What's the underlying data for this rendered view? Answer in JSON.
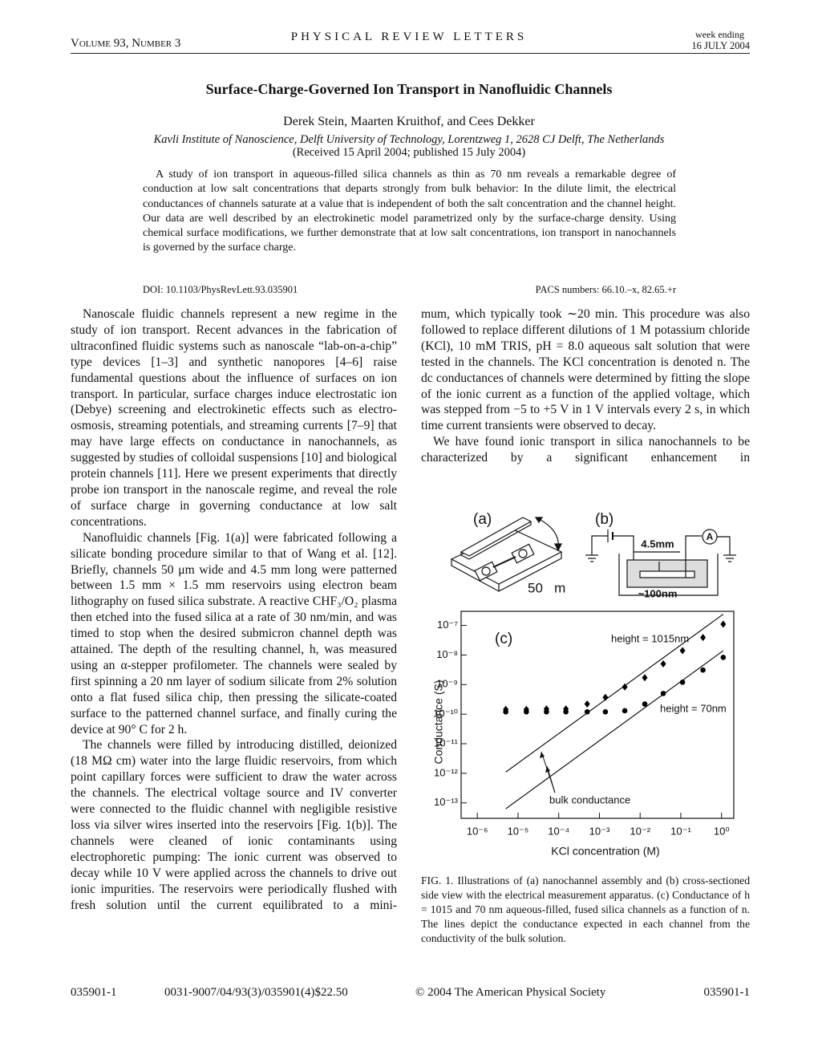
{
  "header": {
    "volume": "Volume 93, Number 3",
    "journal": "PHYSICAL REVIEW LETTERS",
    "week": "week ending",
    "date": "16 JULY 2004"
  },
  "article": {
    "title": "Surface-Charge-Governed Ion Transport in Nanofluidic Channels",
    "authors": "Derek Stein, Maarten Kruithof, and Cees Dekker",
    "affiliation": "Kavli Institute of Nanoscience, Delft University of Technology, Lorentzweg 1, 2628 CJ Delft, The Netherlands",
    "received": "(Received 15 April 2004; published 15 July 2004)",
    "abstract": "A study of ion transport in aqueous-filled silica channels as thin as 70 nm reveals a remarkable degree of conduction at low salt concentrations that departs strongly from bulk behavior: In the dilute limit, the electrical conductances of channels saturate at a value that is independent of both the salt concentration and the channel height. Our data are well described by an electrokinetic model parametrized only by the surface-charge density. Using chemical surface modifications, we further demonstrate that at low salt concentrations, ion transport in nanochannels is governed by the surface charge.",
    "doi": "DOI: 10.1103/PhysRevLett.93.035901",
    "pacs": "PACS numbers: 66.10.–x, 82.65.+r"
  },
  "body": {
    "left": [
      "Nanoscale fluidic channels represent a new regime in the study of ion transport. Recent advances in the fabrication of ultraconfined fluidic systems such as nanoscale “lab-on-a-chip” type devices [1–3] and synthetic nanopores [4–6] raise fundamental questions about the influence of surfaces on ion transport. In particular, surface charges induce electrostatic ion (Debye) screening and electrokinetic effects such as electro-osmosis, streaming potentials, and streaming currents [7–9] that may have large effects on conductance in nanochannels, as suggested by studies of colloidal suspensions [10] and biological protein channels [11]. Here we present experiments that directly probe ion transport in the nanoscale regime, and reveal the role of surface charge in governing conductance at low salt concentrations.",
      "Nanofluidic channels [Fig. 1(a)] were fabricated following a silicate bonding procedure similar to that of Wang et al. [12]. Briefly, channels 50 μm wide and 4.5 mm long were patterned between 1.5 mm × 1.5 mm reservoirs using electron beam lithography on fused silica substrate. A reactive CHF₃/O₂ plasma then etched into the fused silica at a rate of 30 nm/min, and was timed to stop when the desired submicron channel depth was attained. The depth of the resulting channel, h, was measured using an α-stepper profilometer. The channels were sealed by first spinning a 20 nm layer of sodium silicate from 2% solution onto a flat fused silica chip, then pressing the silicate-coated surface to the patterned channel surface, and finally curing the device at 90° C for 2 h.",
      "The channels were filled by introducing distilled, deionized (18 MΩ cm) water into the large fluidic reservoirs, from which point capillary forces were sufficient to draw the water across the channels. The electrical voltage source and IV converter were connected to the fluidic channel with negligible resistive loss via silver wires inserted into the reservoirs [Fig. 1(b)]. The channels were cleaned of ionic contaminants using electrophoretic pumping: The ionic current was observed to decay while 10 V were applied across the channels to drive out ionic impurities. The reservoirs were periodically flushed with fresh solution until the current equilibrated to a mini-"
    ],
    "right": [
      "mum, which typically took ∼20 min. This procedure was also followed to replace different dilutions of 1 M potassium chloride (KCl), 10 mM TRIS, pH = 8.0 aqueous salt solution that were tested in the channels. The KCl concentration is denoted n. The dc conductances of channels were determined by fitting the slope of the ionic current as a function of the applied voltage, which was stepped from −5 to +5 V in 1 V intervals every 2 s, in which time current transients were observed to decay.",
      "We have found ionic transport in silica nanochannels to be characterized by a significant enhancement in"
    ]
  },
  "figure": {
    "panel_a": {
      "label": "(a)",
      "scale": "50   m"
    },
    "panel_b": {
      "label": "(b)",
      "length": "4.5mm",
      "depth": "~100nm",
      "meter": "A"
    },
    "caption": "FIG. 1. Illustrations of (a) nanochannel assembly and (b) cross-sectioned side view with the electrical measurement apparatus. (c) Conductance of h = 1015 and 70 nm aqueous-filled, fused silica channels as a function of n. The lines depict the conductance expected in each channel from the conductivity of the bulk solution."
  },
  "chart_data": {
    "type": "scatter",
    "panel_label": "(c)",
    "x_label": "KCl concentration (M)",
    "y_label": "Conductance (S)",
    "xscale": "log",
    "yscale": "log",
    "xlim": [
      4e-07,
      2
    ],
    "ylim": [
      3e-14,
      3e-07
    ],
    "xticks": [
      {
        "value": 1e-06,
        "label": "10⁻⁶"
      },
      {
        "value": 1e-05,
        "label": "10⁻⁵"
      },
      {
        "value": 0.0001,
        "label": "10⁻⁴"
      },
      {
        "value": 0.001,
        "label": "10⁻³"
      },
      {
        "value": 0.01,
        "label": "10⁻²"
      },
      {
        "value": 0.1,
        "label": "10⁻¹"
      },
      {
        "value": 1,
        "label": "10⁰"
      }
    ],
    "yticks": [
      {
        "value": 1e-13,
        "label": "10⁻¹³"
      },
      {
        "value": 1e-12,
        "label": "10⁻¹²"
      },
      {
        "value": 1e-11,
        "label": "10⁻¹¹"
      },
      {
        "value": 1e-10,
        "label": "10⁻¹⁰"
      },
      {
        "value": 1e-09,
        "label": "10⁻⁹"
      },
      {
        "value": 1e-08,
        "label": "10⁻⁸"
      },
      {
        "value": 1e-07,
        "label": "10⁻⁷"
      }
    ],
    "x": [
      5e-06,
      1.6e-05,
      5e-05,
      0.00015,
      0.0005,
      0.0014,
      0.0042,
      0.013,
      0.037,
      0.11,
      0.35,
      1.1
    ],
    "series": [
      {
        "color": "#000000",
        "marker": "diamond",
        "values": [
          1.45e-10,
          1.45e-10,
          1.5e-10,
          1.5e-10,
          2.2e-10,
          3.7e-10,
          8.3e-10,
          1.7e-09,
          5e-09,
          1.4e-08,
          3.9e-08,
          1.1e-07
        ]
      },
      {
        "color": "#000000",
        "marker": "circle",
        "values": [
          1.2e-10,
          1.2e-10,
          1.2e-10,
          1.2e-10,
          1.2e-10,
          1.2e-10,
          1.3e-10,
          2.2e-10,
          5e-10,
          1.2e-09,
          3.1e-09,
          8.3e-09
        ]
      }
    ],
    "lines": [
      {
        "color": "#000000",
        "x": [
          5e-06,
          1.1
        ],
        "values": [
          1.1e-12,
          2.4e-07
        ]
      },
      {
        "color": "#000000",
        "x": [
          5e-06,
          1.1
        ],
        "values": [
          6.3e-14,
          1.4e-08
        ]
      }
    ],
    "annotations": [
      "height = 1015nm",
      "height = 70nm",
      "bulk conductance"
    ]
  },
  "footer": {
    "page_left": "035901-1",
    "code": "0031-9007/04/93(3)/035901(4)$22.50",
    "copyright": "© 2004 The American Physical Society",
    "page_right": "035901-1"
  }
}
